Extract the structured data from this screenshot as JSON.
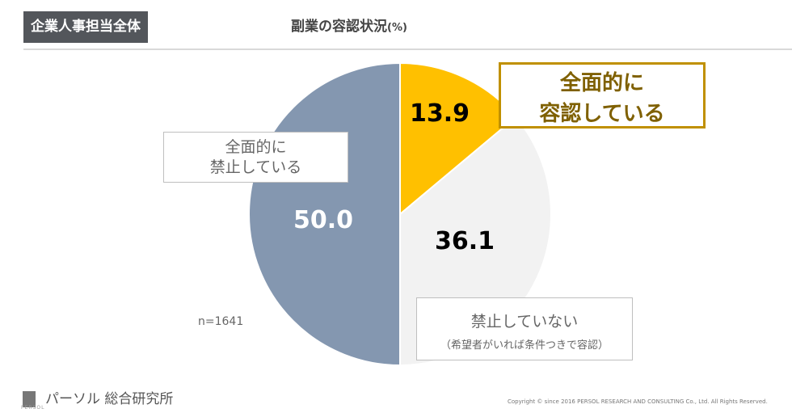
{
  "header": {
    "badge": "企業人事担当全体",
    "title": "副業の容認状況",
    "title_unit": "(%)"
  },
  "chart_data": {
    "type": "pie",
    "title": "副業の容認状況(%)",
    "start": "top",
    "direction": "clockwise",
    "slices": [
      {
        "label": "全面的に容認している",
        "value": 13.9,
        "color": "#FFC000"
      },
      {
        "label": "禁止していない（希望者がいれば条件つきで容認）",
        "value": 36.1,
        "color": "#F2F2F2"
      },
      {
        "label": "全面的に禁止している",
        "value": 50.0,
        "color": "#8497B0"
      }
    ],
    "data_labels": [
      "13.9",
      "36.1",
      "50.0"
    ]
  },
  "labels": {
    "allowed": [
      "全面的に",
      "容認している"
    ],
    "prohibited": [
      "全面的に",
      "禁止している"
    ],
    "not_prohibited": "禁止していない",
    "not_prohibited_sub": "（希望者がいれば条件つきで容認）",
    "n": "n=1641"
  },
  "footer": {
    "logo": "パーソル 総合研究所",
    "logo_sub": "PERSOL",
    "copyright": "Copyright © since 2016 PERSOL RESEARCH AND CONSULTING Co., Ltd. All Rights Reserved."
  }
}
